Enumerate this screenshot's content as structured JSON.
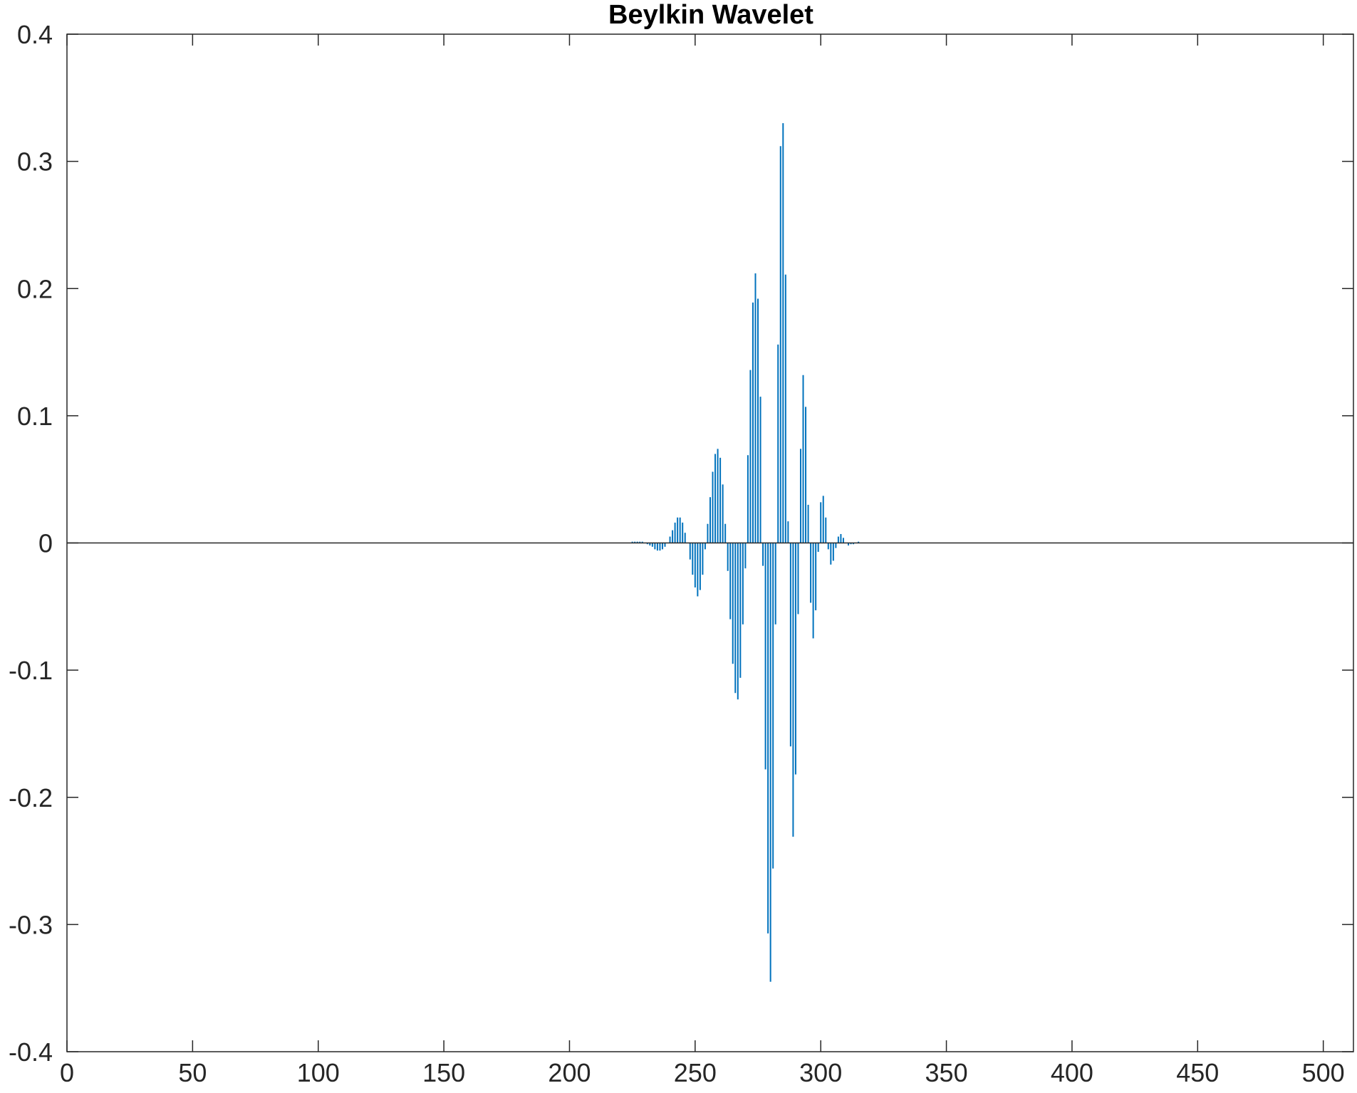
{
  "chart_data": {
    "type": "bar",
    "title": "Beylkin Wavelet",
    "xlabel": "",
    "ylabel": "",
    "xlim": [
      0,
      512
    ],
    "ylim": [
      -0.4,
      0.4
    ],
    "xticks": [
      0,
      50,
      100,
      150,
      200,
      250,
      300,
      350,
      400,
      450,
      500
    ],
    "xtick_labels": [
      "0",
      "50",
      "100",
      "150",
      "200",
      "250",
      "300",
      "350",
      "400",
      "450",
      "500"
    ],
    "yticks": [
      -0.4,
      -0.3,
      -0.2,
      -0.1,
      0,
      0.1,
      0.2,
      0.3,
      0.4
    ],
    "ytick_labels": [
      "-0.4",
      "-0.3",
      "-0.2",
      "-0.1",
      "0",
      "0.1",
      "0.2",
      "0.3",
      "0.4"
    ],
    "grid": false,
    "color": "#0072BD",
    "axis_color": "#262626",
    "series": [
      {
        "x": [
          225,
          226,
          227,
          228,
          229,
          230,
          231,
          232,
          233,
          234,
          235,
          236,
          237,
          238,
          239,
          240,
          241,
          242,
          243,
          244,
          245,
          246,
          247,
          248,
          249,
          250,
          251,
          252,
          253,
          254,
          255,
          256,
          257,
          258,
          259,
          260,
          261,
          262,
          263,
          264,
          265,
          266,
          267,
          268,
          269,
          270,
          271,
          272,
          273,
          274,
          275,
          276,
          277,
          278,
          279,
          280,
          281,
          282,
          283,
          284,
          285,
          286,
          287,
          288,
          289,
          290,
          291,
          292,
          293,
          294,
          295,
          296,
          297,
          298,
          299,
          300,
          301,
          302,
          303,
          304,
          305,
          306,
          307,
          308,
          309,
          310,
          311,
          312,
          313,
          314,
          315,
          316,
          317,
          318
        ],
        "values": [
          0.001,
          0.001,
          0.001,
          0.001,
          0.001,
          0.0,
          -0.001,
          -0.002,
          -0.003,
          -0.005,
          -0.006,
          -0.006,
          -0.005,
          -0.003,
          0.0,
          0.005,
          0.01,
          0.016,
          0.02,
          0.02,
          0.016,
          0.008,
          0.0,
          -0.013,
          -0.025,
          -0.035,
          -0.042,
          -0.037,
          -0.025,
          -0.005,
          0.015,
          0.036,
          0.056,
          0.07,
          0.074,
          0.067,
          0.046,
          0.015,
          -0.022,
          -0.06,
          -0.095,
          -0.118,
          -0.123,
          -0.106,
          -0.064,
          -0.02,
          0.069,
          0.136,
          0.189,
          0.212,
          0.192,
          0.115,
          -0.018,
          -0.178,
          -0.307,
          -0.345,
          -0.256,
          -0.064,
          0.156,
          0.312,
          0.33,
          0.211,
          0.017,
          -0.16,
          -0.231,
          -0.182,
          -0.056,
          0.074,
          0.132,
          0.107,
          0.03,
          -0.047,
          -0.075,
          -0.053,
          -0.007,
          0.032,
          0.037,
          0.02,
          -0.005,
          -0.017,
          -0.014,
          -0.004,
          0.005,
          0.007,
          0.004,
          0.0,
          -0.002,
          -0.001,
          -0.001,
          0.0,
          0.001,
          0.0,
          0.0,
          0.0
        ]
      }
    ]
  }
}
